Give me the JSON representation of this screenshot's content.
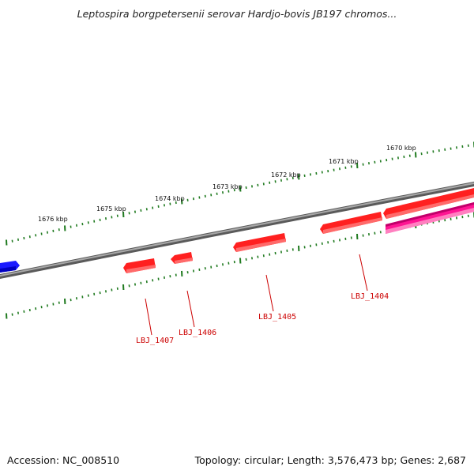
{
  "title": "Leptospira borgpetersenii serovar Hardjo-bovis JB197 chromos...",
  "footer": {
    "accession": "Accession: NC_008510",
    "summary": "Topology: circular; Length: 3,576,473 bp; Genes: 2,687"
  },
  "ruler_labels": [
    "1676 kbp",
    "1675 kbp",
    "1674 kbp",
    "1673 kbp",
    "1672 kbp",
    "1671 kbp",
    "1670 kbp"
  ],
  "gene_labels": [
    "LBJ_1407",
    "LBJ_1406",
    "LBJ_1405",
    "LBJ_1404"
  ],
  "colors": {
    "forward_gene": "#ff0000",
    "reverse_gene": "#ff1493",
    "other_gene": "#1a1aff",
    "backbone": "#7f7f7f",
    "ticks": "#1f7a1f",
    "gene_label": "#cc0000"
  }
}
